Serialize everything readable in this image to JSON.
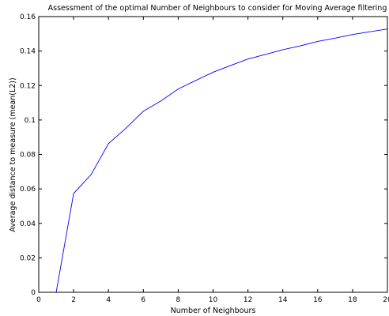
{
  "chart_data": {
    "type": "line",
    "title": "Assessment of the optimal Number of Neighbours to consider for Moving Average filtering",
    "xlabel": "Number of Neighbours",
    "ylabel": "Average distance to measure (mean(L2))",
    "xlim": [
      0,
      20
    ],
    "ylim": [
      0,
      0.16
    ],
    "xticks": [
      "0",
      "2",
      "4",
      "6",
      "8",
      "10",
      "12",
      "14",
      "16",
      "18",
      "20"
    ],
    "yticks": [
      "0",
      "0.02",
      "0.04",
      "0.06",
      "0.08",
      "0.1",
      "0.12",
      "0.14",
      "0.16"
    ],
    "grid": false,
    "series": [
      {
        "color": "#0000ff",
        "x": [
          1,
          2,
          3,
          4,
          5,
          6,
          7,
          8,
          9,
          10,
          11,
          12,
          13,
          14,
          15,
          16,
          17,
          18,
          19,
          20
        ],
        "y": [
          0.0,
          0.0573,
          0.0683,
          0.0863,
          0.0952,
          0.1051,
          0.111,
          0.118,
          0.1229,
          0.1277,
          0.1316,
          0.1354,
          0.138,
          0.1408,
          0.143,
          0.1456,
          0.1475,
          0.1496,
          0.1512,
          0.1528
        ]
      }
    ]
  }
}
